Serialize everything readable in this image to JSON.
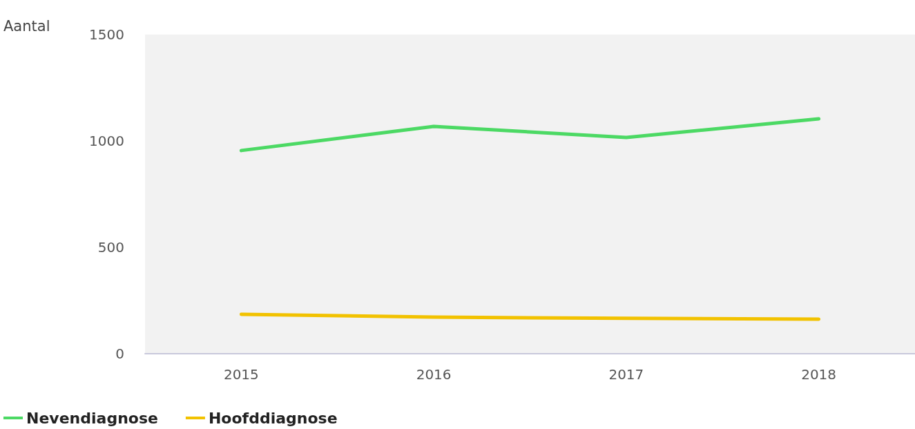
{
  "chart_data": {
    "type": "line",
    "ylabel": "Aantal",
    "categories": [
      "2015",
      "2016",
      "2017",
      "2018"
    ],
    "series": [
      {
        "name": "Nevendiagnose",
        "color": "#4cd964",
        "values": [
          955,
          1068,
          1016,
          1104
        ]
      },
      {
        "name": "Hoofddiagnose",
        "color": "#f2c200",
        "values": [
          185,
          172,
          166,
          162
        ]
      }
    ],
    "ylim": [
      0,
      1500
    ],
    "yticks": [
      0,
      500,
      1000,
      1500
    ],
    "grid": false,
    "legend": "bottom left",
    "marker": "none",
    "line_style": "solid"
  }
}
